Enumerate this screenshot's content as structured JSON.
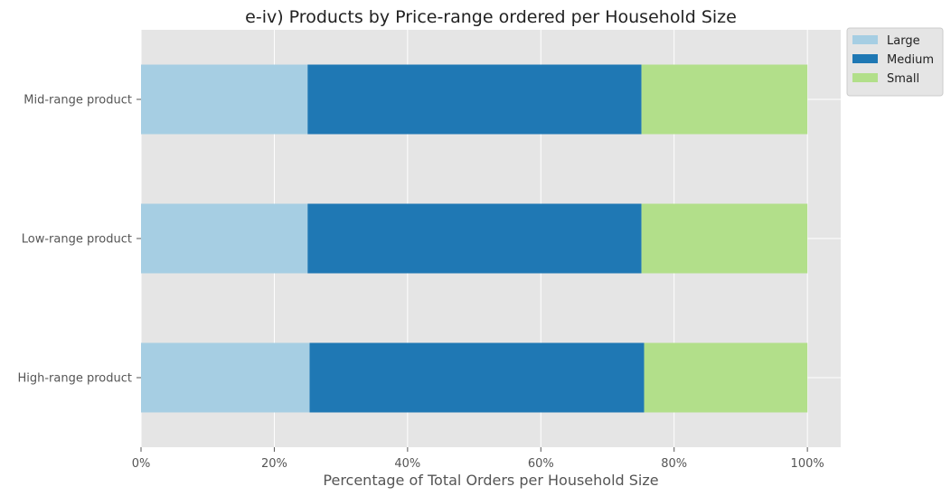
{
  "chart_data": {
    "type": "bar",
    "orientation": "horizontal",
    "stacked": true,
    "title": "e-iv) Products by Price-range ordered per Household Size",
    "xlabel": "Percentage of Total Orders per Household Size",
    "ylabel": "",
    "xlim": [
      0,
      105
    ],
    "xticks": [
      0,
      20,
      40,
      60,
      80,
      100
    ],
    "xtick_labels": [
      "0%",
      "20%",
      "40%",
      "60%",
      "80%",
      "100%"
    ],
    "categories": [
      "Mid-range product",
      "Low-range product",
      "High-range product"
    ],
    "series": [
      {
        "name": "Large",
        "color": "#a6cee3",
        "values": [
          25.0,
          25.0,
          25.3
        ]
      },
      {
        "name": "Medium",
        "color": "#1f78b4",
        "values": [
          50.1,
          50.1,
          50.2
        ]
      },
      {
        "name": "Small",
        "color": "#b2df8a",
        "values": [
          24.9,
          24.9,
          24.5
        ]
      }
    ],
    "grid": true,
    "legend_position": "outside-top-right"
  }
}
